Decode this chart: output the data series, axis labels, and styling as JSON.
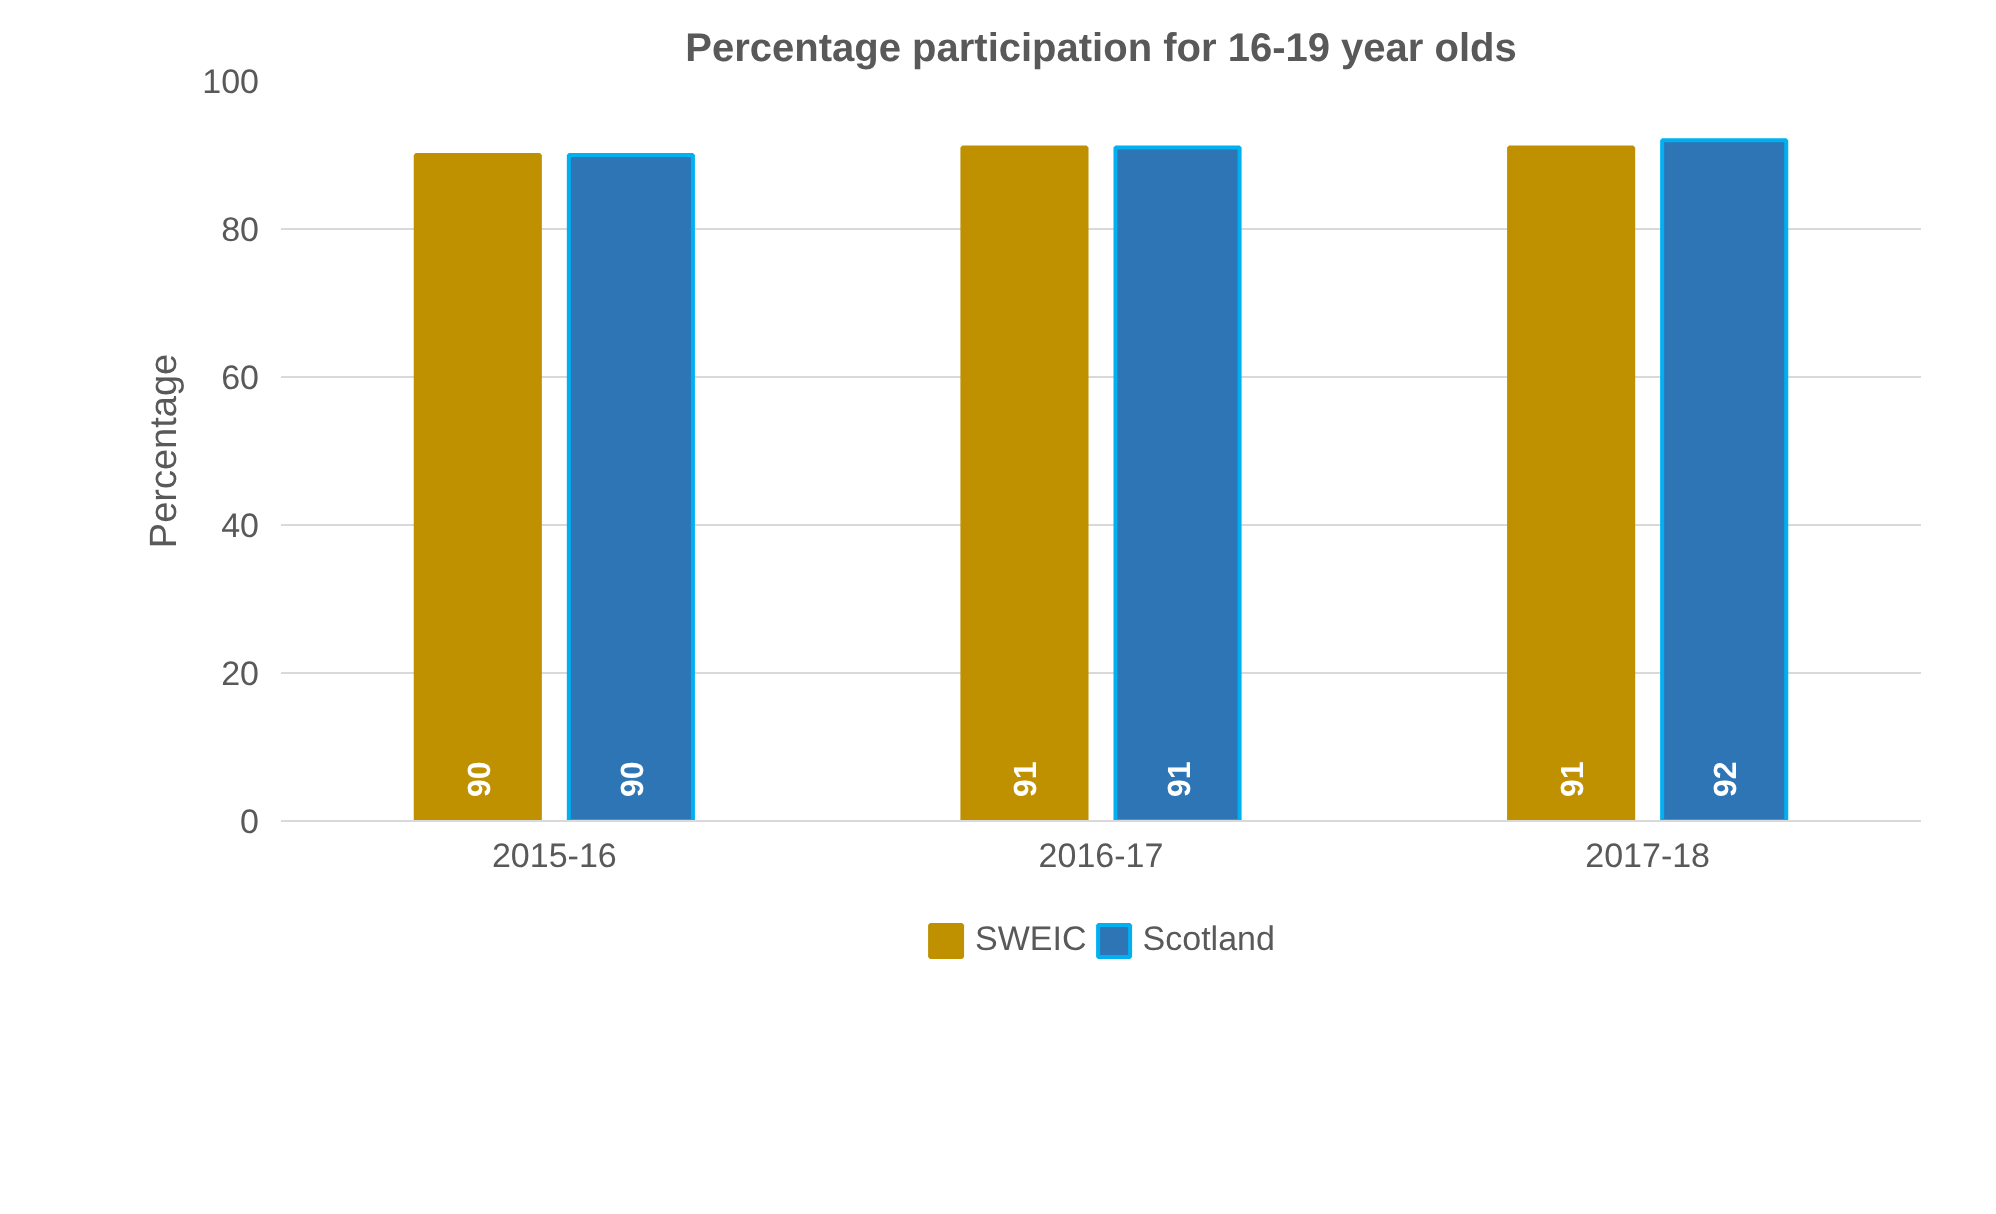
{
  "chart_data": {
    "type": "bar",
    "title": "Percentage participation for 16-19 year olds",
    "ylabel": "Percentage",
    "categories": [
      "2015-16",
      "2016-17",
      "2017-18"
    ],
    "series": [
      {
        "name": "SWEIC",
        "color": "#bf9000",
        "values": [
          90,
          91,
          91
        ]
      },
      {
        "name": "Scotland",
        "color": "#2e75b6",
        "values": [
          90,
          91,
          92
        ]
      }
    ],
    "ylim": [
      0,
      100
    ],
    "yticks": [
      0,
      20,
      40,
      60,
      80,
      100
    ],
    "grid": "y",
    "legend": "bottom",
    "data_labels": true
  }
}
